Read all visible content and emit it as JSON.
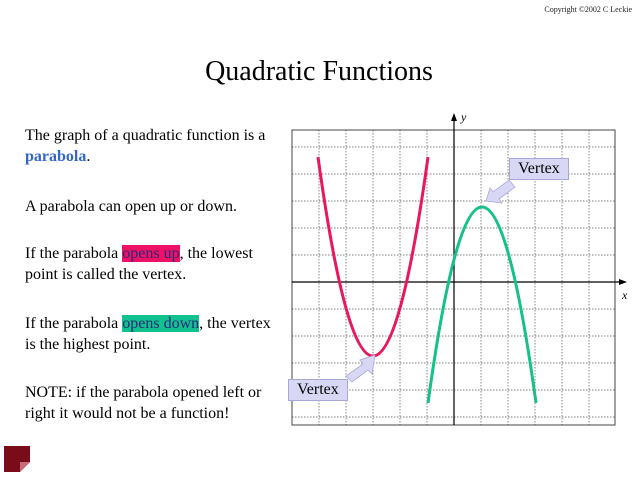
{
  "copyright": "Copyright ©2002 C Leckie",
  "title": "Quadratic Functions",
  "paragraphs": {
    "p1_prefix": "The graph of a quadratic function is a ",
    "p1_keyword": "parabola",
    "p1_suffix": ".",
    "p2": "A parabola can open up or down.",
    "p3_prefix": "If the parabola ",
    "p3_highlight": "opens up",
    "p3_suffix": ", the lowest point is called the vertex.",
    "p4_prefix": "If the parabola ",
    "p4_highlight": "opens down",
    "p4_suffix": ", the vertex is the highest point.",
    "p5": "NOTE:  if the parabola opened left or right it would not be a function!"
  },
  "graph": {
    "x_axis_label": "x",
    "y_axis_label": "y",
    "callout_top": "Vertex",
    "callout_bottom": "Vertex",
    "colors": {
      "up_parabola": "#e8185e",
      "down_parabola": "#16c08a",
      "callout_fill": "#d8d8f4",
      "grid": "#555555"
    }
  }
}
